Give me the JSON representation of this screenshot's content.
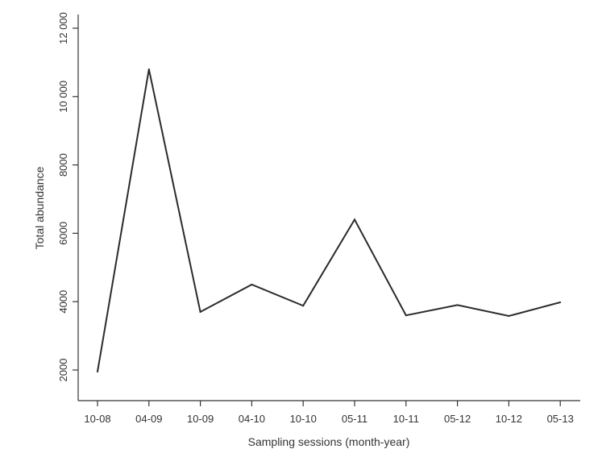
{
  "chart_data": {
    "type": "line",
    "title": "",
    "xlabel": "Sampling sessions (month-year)",
    "ylabel": "Total abundance",
    "categories": [
      "10-08",
      "04-09",
      "10-09",
      "04-10",
      "10-10",
      "05-11",
      "10-11",
      "05-12",
      "10-12",
      "05-13"
    ],
    "series": [
      {
        "values": [
          1950,
          10800,
          3700,
          4500,
          3880,
          6400,
          3600,
          3900,
          3580,
          3980
        ]
      }
    ],
    "y_ticks": [
      2000,
      4000,
      6000,
      8000,
      10000,
      12000
    ],
    "y_tick_labels": [
      "2000",
      "4000",
      "6000",
      "8000",
      "10 000",
      "12 000"
    ],
    "ylim": [
      1000,
      13000
    ],
    "grid": false,
    "legend": "none",
    "line_color": "#2b2b2b"
  }
}
